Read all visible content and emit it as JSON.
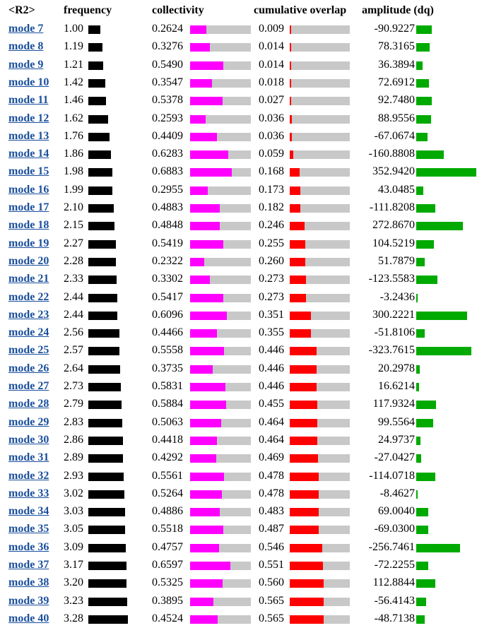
{
  "header": {
    "name": "<R2>",
    "frequency": "frequency",
    "collectivity": "collectivity",
    "cumulative_overlap": "cumulative overlap",
    "amplitude": "amplitude (dq)"
  },
  "colors": {
    "frequency_bar": "#000000",
    "collectivity_bar": "#ff00ff",
    "overlap_bar": "#ff0000",
    "amplitude_bar": "#00aa00",
    "track": "#c8c8c8",
    "link": "#1a4f9c"
  },
  "rows": [
    {
      "mode": "mode 7",
      "freq": "1.00",
      "coll": "0.2624",
      "cum": "0.009",
      "amp": "-90.9227"
    },
    {
      "mode": "mode 8",
      "freq": "1.19",
      "coll": "0.3276",
      "cum": "0.014",
      "amp": "78.3165"
    },
    {
      "mode": "mode 9",
      "freq": "1.21",
      "coll": "0.5490",
      "cum": "0.014",
      "amp": "36.3894"
    },
    {
      "mode": "mode 10",
      "freq": "1.42",
      "coll": "0.3547",
      "cum": "0.018",
      "amp": "72.6912"
    },
    {
      "mode": "mode 11",
      "freq": "1.46",
      "coll": "0.5378",
      "cum": "0.027",
      "amp": "92.7480"
    },
    {
      "mode": "mode 12",
      "freq": "1.62",
      "coll": "0.2593",
      "cum": "0.036",
      "amp": "88.9556"
    },
    {
      "mode": "mode 13",
      "freq": "1.76",
      "coll": "0.4409",
      "cum": "0.036",
      "amp": "-67.0674"
    },
    {
      "mode": "mode 14",
      "freq": "1.86",
      "coll": "0.6283",
      "cum": "0.059",
      "amp": "-160.8808"
    },
    {
      "mode": "mode 15",
      "freq": "1.98",
      "coll": "0.6883",
      "cum": "0.168",
      "amp": "352.9420"
    },
    {
      "mode": "mode 16",
      "freq": "1.99",
      "coll": "0.2955",
      "cum": "0.173",
      "amp": "43.0485"
    },
    {
      "mode": "mode 17",
      "freq": "2.10",
      "coll": "0.4883",
      "cum": "0.182",
      "amp": "-111.8208"
    },
    {
      "mode": "mode 18",
      "freq": "2.15",
      "coll": "0.4848",
      "cum": "0.246",
      "amp": "272.8670"
    },
    {
      "mode": "mode 19",
      "freq": "2.27",
      "coll": "0.5419",
      "cum": "0.255",
      "amp": "104.5219"
    },
    {
      "mode": "mode 20",
      "freq": "2.28",
      "coll": "0.2322",
      "cum": "0.260",
      "amp": "51.7879"
    },
    {
      "mode": "mode 21",
      "freq": "2.33",
      "coll": "0.3302",
      "cum": "0.273",
      "amp": "-123.5583"
    },
    {
      "mode": "mode 22",
      "freq": "2.44",
      "coll": "0.5417",
      "cum": "0.273",
      "amp": "-3.2436"
    },
    {
      "mode": "mode 23",
      "freq": "2.44",
      "coll": "0.6096",
      "cum": "0.351",
      "amp": "300.2221"
    },
    {
      "mode": "mode 24",
      "freq": "2.56",
      "coll": "0.4466",
      "cum": "0.355",
      "amp": "-51.8106"
    },
    {
      "mode": "mode 25",
      "freq": "2.57",
      "coll": "0.5558",
      "cum": "0.446",
      "amp": "-323.7615"
    },
    {
      "mode": "mode 26",
      "freq": "2.64",
      "coll": "0.3735",
      "cum": "0.446",
      "amp": "20.2978"
    },
    {
      "mode": "mode 27",
      "freq": "2.73",
      "coll": "0.5831",
      "cum": "0.446",
      "amp": "16.6214"
    },
    {
      "mode": "mode 28",
      "freq": "2.79",
      "coll": "0.5884",
      "cum": "0.455",
      "amp": "117.9324"
    },
    {
      "mode": "mode 29",
      "freq": "2.83",
      "coll": "0.5063",
      "cum": "0.464",
      "amp": "99.5564"
    },
    {
      "mode": "mode 30",
      "freq": "2.86",
      "coll": "0.4418",
      "cum": "0.464",
      "amp": "24.9737"
    },
    {
      "mode": "mode 31",
      "freq": "2.89",
      "coll": "0.4292",
      "cum": "0.469",
      "amp": "-27.0427"
    },
    {
      "mode": "mode 32",
      "freq": "2.93",
      "coll": "0.5561",
      "cum": "0.478",
      "amp": "-114.0718"
    },
    {
      "mode": "mode 33",
      "freq": "3.02",
      "coll": "0.5264",
      "cum": "0.478",
      "amp": "-8.4627"
    },
    {
      "mode": "mode 34",
      "freq": "3.03",
      "coll": "0.4886",
      "cum": "0.483",
      "amp": "69.0040"
    },
    {
      "mode": "mode 35",
      "freq": "3.05",
      "coll": "0.5518",
      "cum": "0.487",
      "amp": "-69.0300"
    },
    {
      "mode": "mode 36",
      "freq": "3.09",
      "coll": "0.4757",
      "cum": "0.546",
      "amp": "-256.7461"
    },
    {
      "mode": "mode 37",
      "freq": "3.17",
      "coll": "0.6597",
      "cum": "0.551",
      "amp": "-72.2255"
    },
    {
      "mode": "mode 38",
      "freq": "3.20",
      "coll": "0.5325",
      "cum": "0.560",
      "amp": "112.8844"
    },
    {
      "mode": "mode 39",
      "freq": "3.23",
      "coll": "0.3895",
      "cum": "0.565",
      "amp": "-56.4143"
    },
    {
      "mode": "mode 40",
      "freq": "3.28",
      "coll": "0.4524",
      "cum": "0.565",
      "amp": "-48.7138"
    }
  ]
}
